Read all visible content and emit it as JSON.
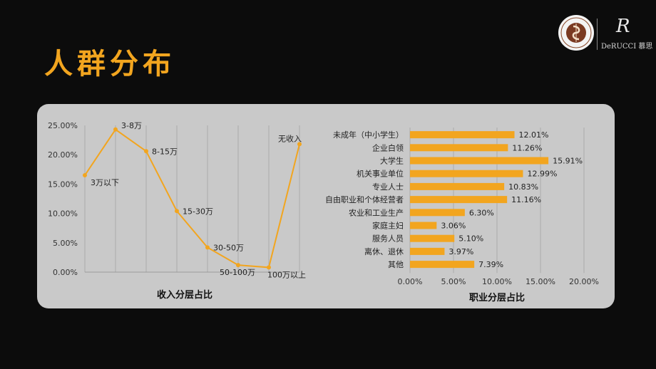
{
  "page": {
    "title": "人群分布",
    "brand": {
      "name": "DeRUCCI 慕思",
      "mark": "R"
    }
  },
  "colors": {
    "accent": "#f2a51f",
    "series": "#f2a51f",
    "panel": "#c9c9c9",
    "background": "#0c0c0c"
  },
  "chart_data": [
    {
      "type": "line",
      "title": "收入分层占比",
      "x": [
        "3万以下",
        "3-8万",
        "8-15万",
        "15-30万",
        "30-50万",
        "50-100万",
        "100万以上",
        "无收入"
      ],
      "values": [
        16.5,
        24.3,
        20.6,
        10.4,
        4.2,
        1.2,
        0.8,
        21.8
      ],
      "ylim": [
        0,
        25
      ],
      "yticks": [
        "25.00%",
        "20.00%",
        "15.00%",
        "10.00%",
        "5.00%",
        "0.00%"
      ],
      "grid": "vertical",
      "legend": "none"
    },
    {
      "type": "bar",
      "orientation": "horizontal",
      "title": "职业分层占比",
      "categories": [
        "未成年（中小学生）",
        "企业白领",
        "大学生",
        "机关事业单位",
        "专业人士",
        "自由职业和个体经营者",
        "农业和工业生产",
        "家庭主妇",
        "服务人员",
        "离休、退休",
        "其他"
      ],
      "values": [
        12.01,
        11.26,
        15.91,
        12.99,
        10.83,
        11.16,
        6.3,
        3.06,
        5.1,
        3.97,
        7.39
      ],
      "labels": [
        "12.01%",
        "11.26%",
        "15.91%",
        "12.99%",
        "10.83%",
        "11.16%",
        "6.30%",
        "3.06%",
        "5.10%",
        "3.97%",
        "7.39%"
      ],
      "xlim": [
        0,
        20
      ],
      "xticks": [
        "0.00%",
        "5.00%",
        "10.00%",
        "15.00%",
        "20.00%"
      ],
      "grid": "vertical",
      "legend": "none"
    }
  ]
}
